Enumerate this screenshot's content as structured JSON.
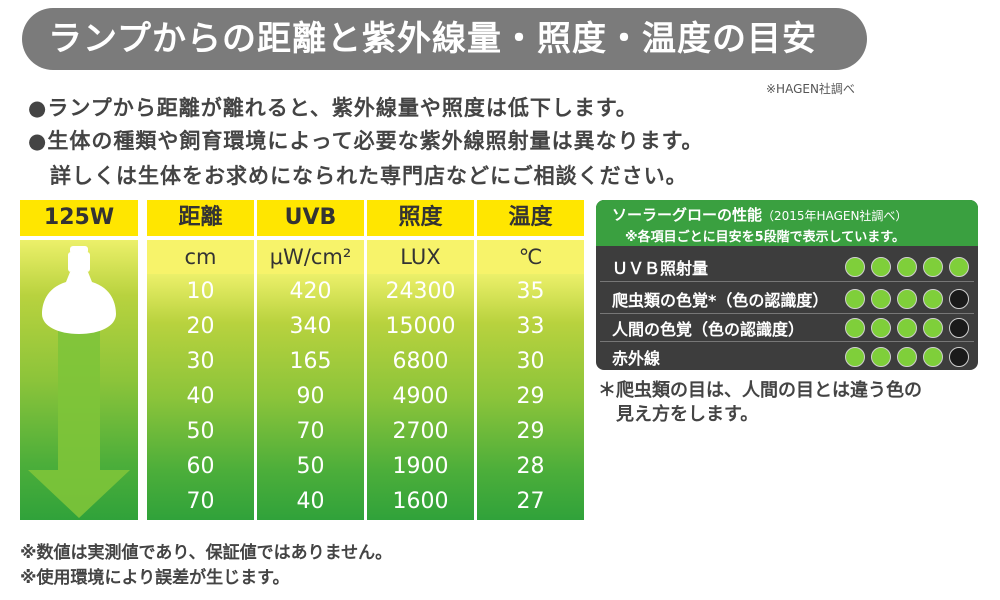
{
  "title": "ランプからの距離と紫外線量・照度・温度の目安",
  "source": "※HAGEN社調べ",
  "bullets": [
    "●ランプから距離が離れると、紫外線量や照度は低下します。",
    "●生体の種類や飼育環境によって必要な紫外線照射量は異なります。",
    "詳しくは生体をお求めになられた専門店などにご相談ください。"
  ],
  "table": {
    "lamp_header": "125W",
    "columns": [
      {
        "header": "距離",
        "unit": "cm",
        "values": [
          "10",
          "20",
          "30",
          "40",
          "50",
          "60",
          "70"
        ]
      },
      {
        "header": "UVB",
        "unit": "μW/cm²",
        "values": [
          "420",
          "340",
          "165",
          "90",
          "70",
          "50",
          "40"
        ]
      },
      {
        "header": "照度",
        "unit": "LUX",
        "values": [
          "24300",
          "15000",
          "6800",
          "4900",
          "2700",
          "1900",
          "1600"
        ]
      },
      {
        "header": "温度",
        "unit": "℃",
        "values": [
          "35",
          "33",
          "30",
          "29",
          "29",
          "28",
          "27"
        ]
      }
    ]
  },
  "panel": {
    "title": "ソーラーグローの性能",
    "title_note": "（2015年HAGEN社調べ）",
    "subtitle": "※各項目ごとに目安を5段階で表示しています。",
    "rows": [
      {
        "label": "ＵＶＢ照射量",
        "score": 5
      },
      {
        "label": "爬虫類の色覚*（色の認識度）",
        "score": 4
      },
      {
        "label": "人間の色覚（色の認識度）",
        "score": 4
      },
      {
        "label": "赤外線",
        "score": 4
      }
    ],
    "colors": {
      "on": "#7fcf3a",
      "off": "#1a1a1a"
    }
  },
  "note": [
    "＊爬虫類の目は、人間の目とは違う色の",
    "見え方をします。"
  ],
  "footer": [
    "※数値は実測値であり、保証値ではありません。",
    "※使用環境により誤差が生じます。"
  ]
}
